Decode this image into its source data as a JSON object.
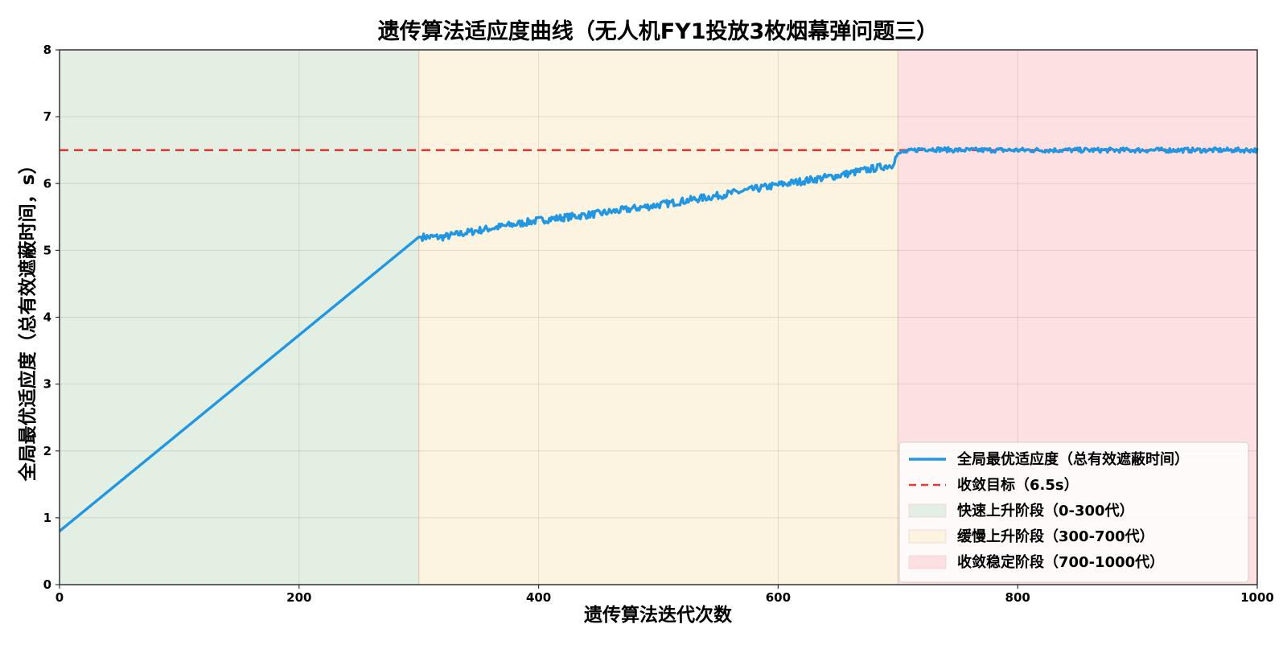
{
  "chart_data": {
    "type": "line",
    "title": "遗传算法适应度曲线（无人机FY1投放3枚烟幕弹问题三）",
    "xlabel": "遗传算法迭代次数",
    "ylabel": "全局最优适应度（总有效遮蔽时间，s）",
    "xlim": [
      0,
      1000
    ],
    "ylim": [
      0,
      8
    ],
    "xticks": [
      0,
      200,
      400,
      600,
      800,
      1000
    ],
    "yticks": [
      0,
      1,
      2,
      3,
      4,
      5,
      6,
      7,
      8
    ],
    "grid": true,
    "legend_position": "lower-right",
    "series": [
      {
        "name": "全局最优适应度（总有效遮蔽时间）",
        "color": "#2196e3",
        "x": [
          0,
          300,
          320,
          350,
          400,
          450,
          500,
          550,
          600,
          650,
          695,
          700,
          720,
          750,
          800,
          850,
          900,
          950,
          1000
        ],
        "y": [
          0.8,
          5.2,
          5.2,
          5.3,
          5.45,
          5.55,
          5.68,
          5.82,
          5.98,
          6.12,
          6.28,
          6.45,
          6.52,
          6.5,
          6.5,
          6.5,
          6.5,
          6.5,
          6.5
        ]
      }
    ],
    "reference_line": {
      "name": "收敛目标（6.5s）",
      "y": 6.5,
      "color": "#e53935",
      "style": "dashed"
    },
    "regions": [
      {
        "name": "快速上升阶段（0-300代）",
        "x": [
          0,
          300
        ],
        "color": "#e3efe3"
      },
      {
        "name": "缓慢上升阶段（300-700代）",
        "x": [
          300,
          700
        ],
        "color": "#fdf3e1"
      },
      {
        "name": "收敛稳定阶段（700-1000代）",
        "x": [
          700,
          1000
        ],
        "color": "#fde0e2"
      }
    ]
  }
}
